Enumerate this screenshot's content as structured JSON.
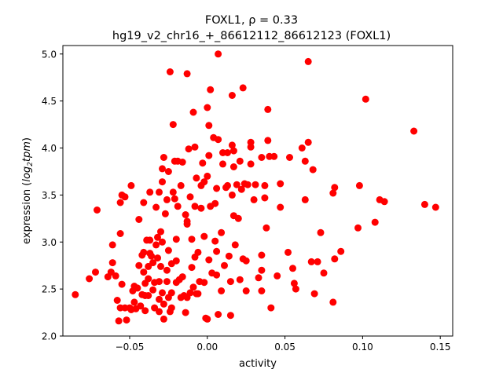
{
  "chart_data": {
    "type": "scatter",
    "title_line1": "FOXL1, ρ = 0.33",
    "title_line2": "hg19_v2_chr16_+_86612112_86612123 (FOXL1)",
    "xlabel": "activity",
    "ylabel_prefix": "expression (",
    "ylabel_log": "log",
    "ylabel_sub": "2",
    "ylabel_tpm": "tpm",
    "ylabel_suffix": ")",
    "xlim": [
      -0.093,
      0.158
    ],
    "ylim": [
      2.0,
      5.09
    ],
    "xticks": [
      -0.05,
      0.0,
      0.05,
      0.1,
      0.15
    ],
    "xtick_labels": [
      "−0.05",
      "0.00",
      "0.05",
      "0.10",
      "0.15"
    ],
    "yticks": [
      2.0,
      2.5,
      3.0,
      3.5,
      4.0,
      4.5,
      5.0
    ],
    "ytick_labels": [
      "2.0",
      "2.5",
      "3.0",
      "3.5",
      "4.0",
      "4.5",
      "5.0"
    ],
    "grid": false,
    "marker_color": "#ff0000",
    "points": [
      {
        "x": -0.085,
        "y": 2.44
      },
      {
        "x": -0.076,
        "y": 2.61
      },
      {
        "x": -0.072,
        "y": 2.68
      },
      {
        "x": -0.071,
        "y": 3.34
      },
      {
        "x": -0.064,
        "y": 2.63
      },
      {
        "x": -0.062,
        "y": 2.68
      },
      {
        "x": -0.061,
        "y": 2.78
      },
      {
        "x": -0.061,
        "y": 2.97
      },
      {
        "x": -0.059,
        "y": 2.64
      },
      {
        "x": -0.058,
        "y": 2.38
      },
      {
        "x": -0.057,
        "y": 2.16
      },
      {
        "x": -0.056,
        "y": 2.3
      },
      {
        "x": -0.056,
        "y": 3.09
      },
      {
        "x": -0.056,
        "y": 3.42
      },
      {
        "x": -0.055,
        "y": 3.5
      },
      {
        "x": -0.055,
        "y": 2.55
      },
      {
        "x": -0.053,
        "y": 3.48
      },
      {
        "x": -0.053,
        "y": 2.3
      },
      {
        "x": -0.052,
        "y": 2.17
      },
      {
        "x": -0.05,
        "y": 2.3
      },
      {
        "x": -0.049,
        "y": 2.28
      },
      {
        "x": -0.049,
        "y": 3.6
      },
      {
        "x": -0.048,
        "y": 2.48
      },
      {
        "x": -0.047,
        "y": 2.53
      },
      {
        "x": -0.047,
        "y": 2.36
      },
      {
        "x": -0.046,
        "y": 2.29
      },
      {
        "x": -0.045,
        "y": 2.51
      },
      {
        "x": -0.044,
        "y": 2.75
      },
      {
        "x": -0.044,
        "y": 3.24
      },
      {
        "x": -0.043,
        "y": 2.32
      },
      {
        "x": -0.042,
        "y": 2.44
      },
      {
        "x": -0.042,
        "y": 2.86
      },
      {
        "x": -0.041,
        "y": 2.68
      },
      {
        "x": -0.041,
        "y": 2.89
      },
      {
        "x": -0.041,
        "y": 3.42
      },
      {
        "x": -0.04,
        "y": 2.27
      },
      {
        "x": -0.04,
        "y": 2.43
      },
      {
        "x": -0.04,
        "y": 2.56
      },
      {
        "x": -0.039,
        "y": 3.02
      },
      {
        "x": -0.038,
        "y": 2.61
      },
      {
        "x": -0.038,
        "y": 2.74
      },
      {
        "x": -0.038,
        "y": 2.43
      },
      {
        "x": -0.037,
        "y": 3.02
      },
      {
        "x": -0.037,
        "y": 2.88
      },
      {
        "x": -0.037,
        "y": 3.53
      },
      {
        "x": -0.036,
        "y": 2.85
      },
      {
        "x": -0.035,
        "y": 2.49
      },
      {
        "x": -0.035,
        "y": 2.78
      },
      {
        "x": -0.034,
        "y": 2.3
      },
      {
        "x": -0.034,
        "y": 2.57
      },
      {
        "x": -0.033,
        "y": 2.97
      },
      {
        "x": -0.033,
        "y": 3.37
      },
      {
        "x": -0.032,
        "y": 2.83
      },
      {
        "x": -0.032,
        "y": 3.05
      },
      {
        "x": -0.031,
        "y": 2.26
      },
      {
        "x": -0.031,
        "y": 2.39
      },
      {
        "x": -0.031,
        "y": 2.58
      },
      {
        "x": -0.031,
        "y": 3.53
      },
      {
        "x": -0.03,
        "y": 2.74
      },
      {
        "x": -0.03,
        "y": 3.11
      },
      {
        "x": -0.029,
        "y": 2.46
      },
      {
        "x": -0.029,
        "y": 3.0
      },
      {
        "x": -0.029,
        "y": 3.64
      },
      {
        "x": -0.029,
        "y": 3.78
      },
      {
        "x": -0.028,
        "y": 3.9
      },
      {
        "x": -0.028,
        "y": 2.18
      },
      {
        "x": -0.028,
        "y": 2.34
      },
      {
        "x": -0.027,
        "y": 3.3
      },
      {
        "x": -0.026,
        "y": 2.58
      },
      {
        "x": -0.026,
        "y": 2.7
      },
      {
        "x": -0.026,
        "y": 3.45
      },
      {
        "x": -0.025,
        "y": 2.41
      },
      {
        "x": -0.025,
        "y": 2.91
      },
      {
        "x": -0.025,
        "y": 3.75
      },
      {
        "x": -0.024,
        "y": 4.81
      },
      {
        "x": -0.024,
        "y": 2.26
      },
      {
        "x": -0.023,
        "y": 2.46
      },
      {
        "x": -0.023,
        "y": 2.77
      },
      {
        "x": -0.023,
        "y": 2.3
      },
      {
        "x": -0.022,
        "y": 3.53
      },
      {
        "x": -0.022,
        "y": 4.25
      },
      {
        "x": -0.021,
        "y": 3.46
      },
      {
        "x": -0.021,
        "y": 3.86
      },
      {
        "x": -0.02,
        "y": 2.57
      },
      {
        "x": -0.02,
        "y": 2.8
      },
      {
        "x": -0.02,
        "y": 3.03
      },
      {
        "x": -0.019,
        "y": 3.38
      },
      {
        "x": -0.019,
        "y": 3.86
      },
      {
        "x": -0.018,
        "y": 2.6
      },
      {
        "x": -0.017,
        "y": 2.41
      },
      {
        "x": -0.017,
        "y": 3.6
      },
      {
        "x": -0.016,
        "y": 3.85
      },
      {
        "x": -0.016,
        "y": 2.63
      },
      {
        "x": -0.015,
        "y": 2.43
      },
      {
        "x": -0.014,
        "y": 2.25
      },
      {
        "x": -0.014,
        "y": 3.29
      },
      {
        "x": -0.013,
        "y": 4.79
      },
      {
        "x": -0.013,
        "y": 3.22
      },
      {
        "x": -0.013,
        "y": 3.19
      },
      {
        "x": -0.013,
        "y": 2.41
      },
      {
        "x": -0.012,
        "y": 3.99
      },
      {
        "x": -0.011,
        "y": 2.46
      },
      {
        "x": -0.011,
        "y": 3.48
      },
      {
        "x": -0.01,
        "y": 2.73
      },
      {
        "x": -0.01,
        "y": 3.03
      },
      {
        "x": -0.009,
        "y": 4.38
      },
      {
        "x": -0.009,
        "y": 2.52
      },
      {
        "x": -0.008,
        "y": 4.01
      },
      {
        "x": -0.008,
        "y": 3.38
      },
      {
        "x": -0.008,
        "y": 2.84
      },
      {
        "x": -0.007,
        "y": 2.45
      },
      {
        "x": -0.007,
        "y": 3.68
      },
      {
        "x": -0.006,
        "y": 2.89
      },
      {
        "x": -0.006,
        "y": 2.45
      },
      {
        "x": -0.005,
        "y": 2.58
      },
      {
        "x": -0.004,
        "y": 3.36
      },
      {
        "x": -0.004,
        "y": 3.6
      },
      {
        "x": -0.003,
        "y": 3.84
      },
      {
        "x": -0.002,
        "y": 3.06
      },
      {
        "x": -0.002,
        "y": 3.64
      },
      {
        "x": -0.002,
        "y": 2.57
      },
      {
        "x": -0.001,
        "y": 2.19
      },
      {
        "x": 0.0,
        "y": 2.18
      },
      {
        "x": 0.0,
        "y": 3.7
      },
      {
        "x": 0.0,
        "y": 4.43
      },
      {
        "x": 0.001,
        "y": 3.92
      },
      {
        "x": 0.001,
        "y": 4.24
      },
      {
        "x": 0.001,
        "y": 2.81
      },
      {
        "x": 0.002,
        "y": 4.62
      },
      {
        "x": 0.002,
        "y": 3.38
      },
      {
        "x": 0.003,
        "y": 2.67
      },
      {
        "x": 0.004,
        "y": 4.11
      },
      {
        "x": 0.005,
        "y": 3.41
      },
      {
        "x": 0.005,
        "y": 3.01
      },
      {
        "x": 0.006,
        "y": 3.57
      },
      {
        "x": 0.006,
        "y": 2.9
      },
      {
        "x": 0.006,
        "y": 2.65
      },
      {
        "x": 0.007,
        "y": 5.0
      },
      {
        "x": 0.007,
        "y": 4.09
      },
      {
        "x": 0.007,
        "y": 2.23
      },
      {
        "x": 0.009,
        "y": 2.48
      },
      {
        "x": 0.009,
        "y": 3.1
      },
      {
        "x": 0.01,
        "y": 3.83
      },
      {
        "x": 0.01,
        "y": 3.95
      },
      {
        "x": 0.011,
        "y": 2.75
      },
      {
        "x": 0.012,
        "y": 3.58
      },
      {
        "x": 0.013,
        "y": 3.6
      },
      {
        "x": 0.013,
        "y": 3.95
      },
      {
        "x": 0.014,
        "y": 2.85
      },
      {
        "x": 0.015,
        "y": 2.22
      },
      {
        "x": 0.015,
        "y": 2.58
      },
      {
        "x": 0.016,
        "y": 4.03
      },
      {
        "x": 0.016,
        "y": 4.56
      },
      {
        "x": 0.016,
        "y": 3.5
      },
      {
        "x": 0.017,
        "y": 3.97
      },
      {
        "x": 0.017,
        "y": 3.8
      },
      {
        "x": 0.017,
        "y": 3.28
      },
      {
        "x": 0.018,
        "y": 2.97
      },
      {
        "x": 0.019,
        "y": 3.61
      },
      {
        "x": 0.02,
        "y": 3.25
      },
      {
        "x": 0.021,
        "y": 3.86
      },
      {
        "x": 0.021,
        "y": 2.6
      },
      {
        "x": 0.022,
        "y": 3.56
      },
      {
        "x": 0.023,
        "y": 2.82
      },
      {
        "x": 0.023,
        "y": 4.64
      },
      {
        "x": 0.024,
        "y": 3.62
      },
      {
        "x": 0.025,
        "y": 2.8
      },
      {
        "x": 0.025,
        "y": 2.48
      },
      {
        "x": 0.026,
        "y": 3.61
      },
      {
        "x": 0.028,
        "y": 4.06
      },
      {
        "x": 0.028,
        "y": 4.01
      },
      {
        "x": 0.028,
        "y": 3.83
      },
      {
        "x": 0.03,
        "y": 3.45
      },
      {
        "x": 0.031,
        "y": 3.61
      },
      {
        "x": 0.033,
        "y": 2.62
      },
      {
        "x": 0.035,
        "y": 3.9
      },
      {
        "x": 0.035,
        "y": 2.7
      },
      {
        "x": 0.035,
        "y": 2.86
      },
      {
        "x": 0.035,
        "y": 2.48
      },
      {
        "x": 0.037,
        "y": 3.6
      },
      {
        "x": 0.037,
        "y": 3.47
      },
      {
        "x": 0.038,
        "y": 3.15
      },
      {
        "x": 0.039,
        "y": 4.41
      },
      {
        "x": 0.039,
        "y": 4.08
      },
      {
        "x": 0.04,
        "y": 3.91
      },
      {
        "x": 0.041,
        "y": 2.3
      },
      {
        "x": 0.043,
        "y": 3.91
      },
      {
        "x": 0.045,
        "y": 2.64
      },
      {
        "x": 0.047,
        "y": 3.62
      },
      {
        "x": 0.047,
        "y": 3.37
      },
      {
        "x": 0.052,
        "y": 2.89
      },
      {
        "x": 0.053,
        "y": 3.9
      },
      {
        "x": 0.055,
        "y": 2.72
      },
      {
        "x": 0.056,
        "y": 2.56
      },
      {
        "x": 0.057,
        "y": 2.5
      },
      {
        "x": 0.061,
        "y": 4.0
      },
      {
        "x": 0.063,
        "y": 3.45
      },
      {
        "x": 0.063,
        "y": 3.86
      },
      {
        "x": 0.065,
        "y": 4.92
      },
      {
        "x": 0.065,
        "y": 4.06
      },
      {
        "x": 0.067,
        "y": 2.79
      },
      {
        "x": 0.068,
        "y": 3.77
      },
      {
        "x": 0.069,
        "y": 2.45
      },
      {
        "x": 0.071,
        "y": 2.79
      },
      {
        "x": 0.073,
        "y": 3.1
      },
      {
        "x": 0.075,
        "y": 2.67
      },
      {
        "x": 0.081,
        "y": 2.36
      },
      {
        "x": 0.081,
        "y": 3.52
      },
      {
        "x": 0.082,
        "y": 3.58
      },
      {
        "x": 0.082,
        "y": 2.82
      },
      {
        "x": 0.086,
        "y": 2.9
      },
      {
        "x": 0.097,
        "y": 3.15
      },
      {
        "x": 0.098,
        "y": 3.6
      },
      {
        "x": 0.102,
        "y": 4.52
      },
      {
        "x": 0.108,
        "y": 3.21
      },
      {
        "x": 0.111,
        "y": 3.45
      },
      {
        "x": 0.114,
        "y": 3.43
      },
      {
        "x": 0.133,
        "y": 4.18
      },
      {
        "x": 0.14,
        "y": 3.4
      },
      {
        "x": 0.147,
        "y": 3.37
      }
    ]
  }
}
